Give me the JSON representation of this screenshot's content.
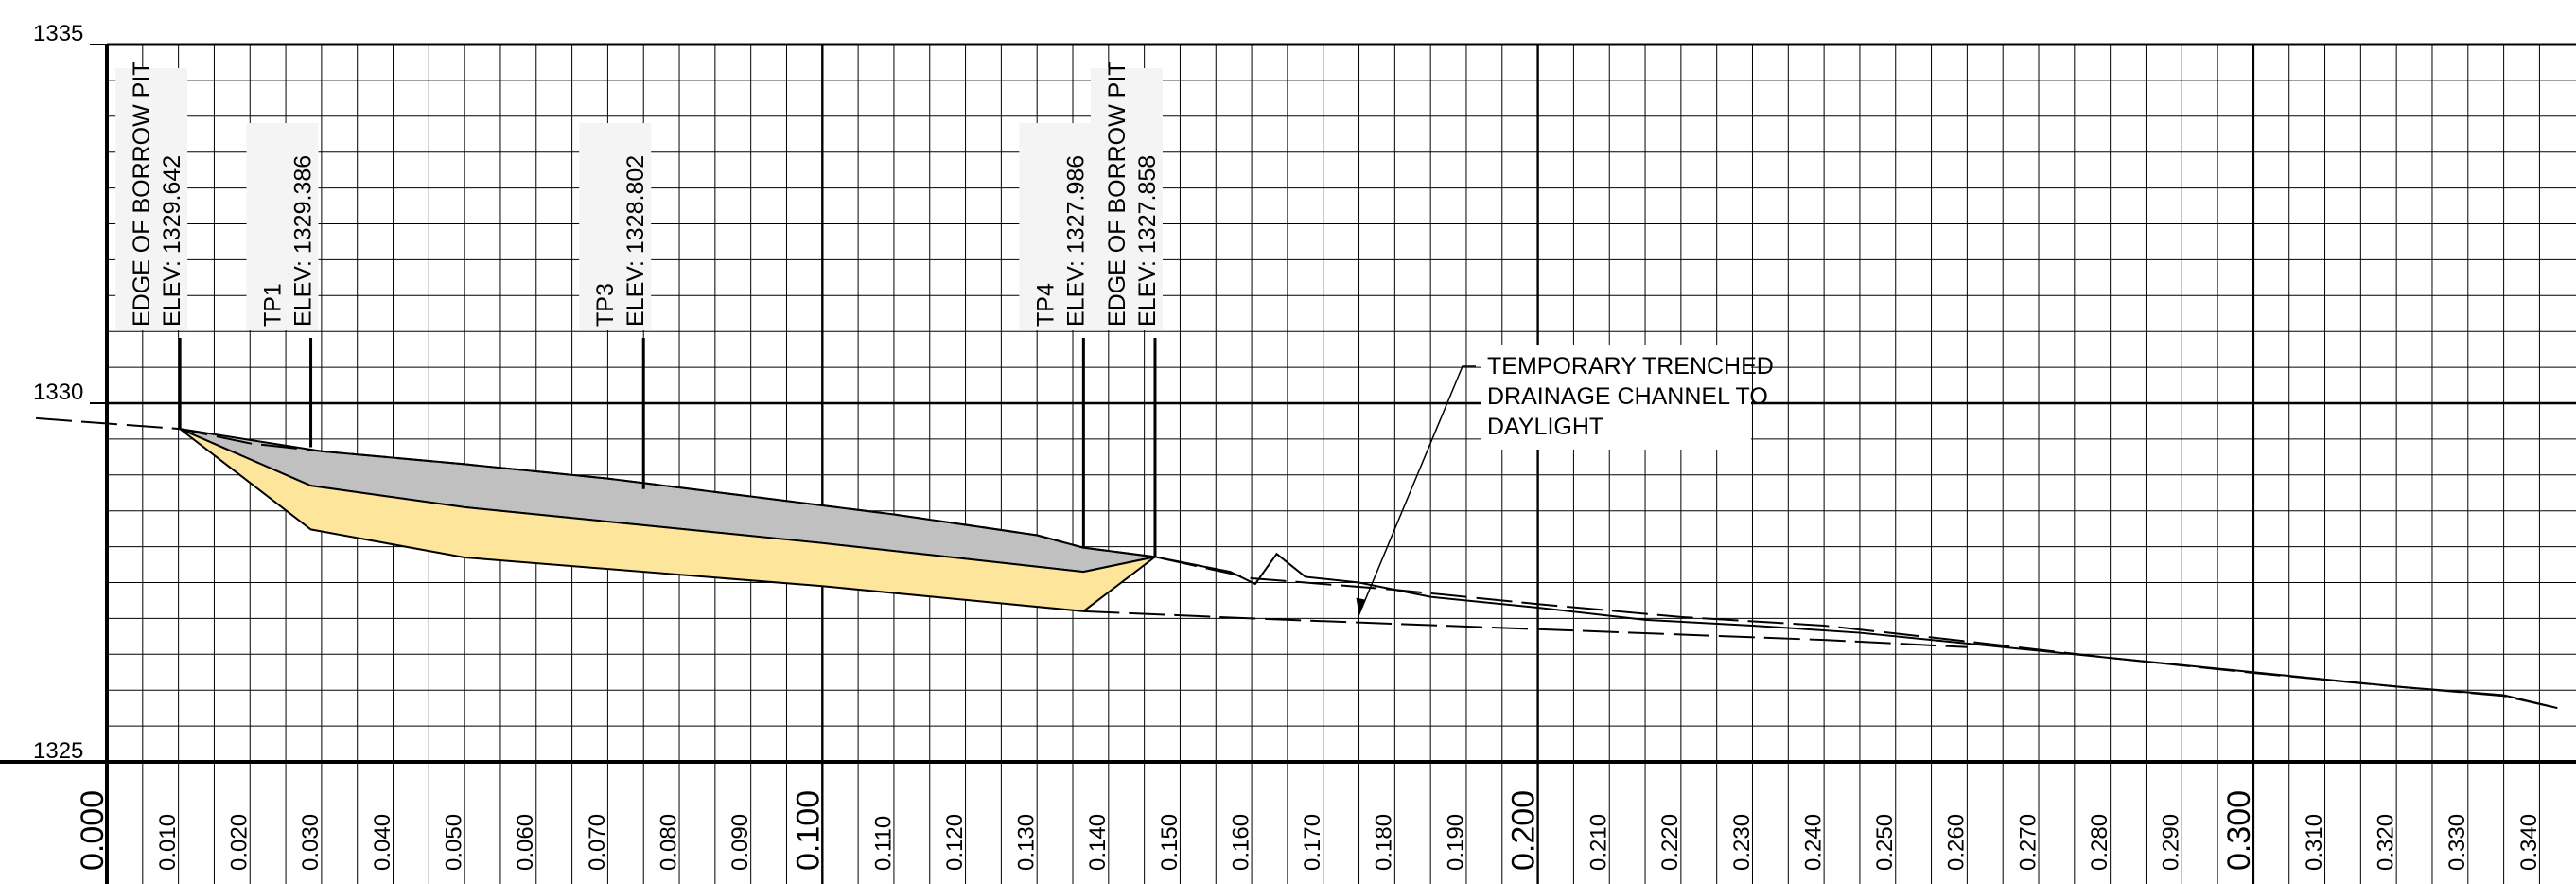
{
  "chart_data": {
    "type": "line",
    "title": "",
    "xlabel": "",
    "ylabel": "",
    "xlim": [
      0.0,
      0.3425
    ],
    "ylim": [
      1325,
      1335
    ],
    "grid": true,
    "y_ticks": [
      "1325",
      "1330",
      "1335"
    ],
    "x_ticks": [
      "0.000",
      "0.010",
      "0.020",
      "0.030",
      "0.040",
      "0.050",
      "0.060",
      "0.070",
      "0.080",
      "0.090",
      "0.100",
      "0.110",
      "0.120",
      "0.130",
      "0.140",
      "0.150",
      "0.160",
      "0.170",
      "0.180",
      "0.190",
      "0.200",
      "0.210",
      "0.220",
      "0.230",
      "0.240",
      "0.250",
      "0.260",
      "0.270",
      "0.280",
      "0.290",
      "0.300",
      "0.310",
      "0.320",
      "0.330",
      "0.340"
    ],
    "x_tick_values": [
      0.0,
      0.01,
      0.02,
      0.03,
      0.04,
      0.05,
      0.06,
      0.07,
      0.08,
      0.09,
      0.1,
      0.11,
      0.12,
      0.13,
      0.14,
      0.15,
      0.16,
      0.17,
      0.18,
      0.19,
      0.2,
      0.21,
      0.22,
      0.23,
      0.24,
      0.25,
      0.26,
      0.27,
      0.28,
      0.29,
      0.3,
      0.31,
      0.32,
      0.33,
      0.34
    ],
    "series": [
      {
        "style": "dashed",
        "points": [
          [
            -0.0099,
            1329.79
          ],
          [
            0.0102,
            1329.642
          ],
          [
            0.02,
            1329.44
          ],
          [
            0.03,
            1329.33
          ],
          [
            0.05,
            1329.15
          ],
          [
            0.07,
            1328.95
          ],
          [
            0.09,
            1328.7
          ],
          [
            0.11,
            1328.45
          ],
          [
            0.13,
            1328.16
          ],
          [
            0.1365,
            1327.986
          ],
          [
            0.1465,
            1327.858
          ],
          [
            0.16,
            1327.56
          ],
          [
            0.18,
            1327.4
          ],
          [
            0.2,
            1327.2
          ],
          [
            0.22,
            1327.02
          ],
          [
            0.24,
            1326.9
          ],
          [
            0.26,
            1326.68
          ],
          [
            0.28,
            1326.45
          ],
          [
            0.3,
            1326.24
          ],
          [
            0.32,
            1326.05
          ],
          [
            0.335,
            1325.92
          ],
          [
            0.3425,
            1325.75
          ]
        ]
      },
      {
        "style": "solid",
        "points": [
          [
            0.1465,
            1327.858
          ],
          [
            0.157,
            1327.65
          ],
          [
            0.1605,
            1327.48
          ],
          [
            0.1635,
            1327.9
          ],
          [
            0.1675,
            1327.58
          ],
          [
            0.175,
            1327.5
          ],
          [
            0.185,
            1327.3
          ],
          [
            0.2,
            1327.15
          ],
          [
            0.215,
            1326.98
          ],
          [
            0.23,
            1326.9
          ],
          [
            0.245,
            1326.8
          ],
          [
            0.26,
            1326.65
          ],
          [
            0.28,
            1326.45
          ],
          [
            0.3,
            1326.25
          ],
          [
            0.32,
            1326.05
          ],
          [
            0.335,
            1325.93
          ],
          [
            0.3425,
            1325.75
          ]
        ]
      },
      {
        "style": "dashed",
        "points": [
          [
            0.1365,
            1327.1
          ],
          [
            0.16,
            1327.0
          ],
          [
            0.2,
            1326.85
          ],
          [
            0.24,
            1326.7
          ],
          [
            0.26,
            1326.6
          ]
        ]
      }
    ],
    "regions": [
      {
        "fill": "#c0c0c0",
        "points": [
          [
            0.0102,
            1329.642
          ],
          [
            0.03,
            1329.33
          ],
          [
            0.05,
            1329.15
          ],
          [
            0.07,
            1328.95
          ],
          [
            0.09,
            1328.7
          ],
          [
            0.11,
            1328.45
          ],
          [
            0.13,
            1328.16
          ],
          [
            0.1365,
            1327.986
          ],
          [
            0.1465,
            1327.858
          ],
          [
            0.1365,
            1327.65
          ],
          [
            0.1,
            1328.05
          ],
          [
            0.05,
            1328.55
          ],
          [
            0.0285,
            1328.85
          ]
        ]
      },
      {
        "fill": "#fde59c",
        "points": [
          [
            0.0102,
            1329.642
          ],
          [
            0.0285,
            1328.85
          ],
          [
            0.05,
            1328.55
          ],
          [
            0.1,
            1328.05
          ],
          [
            0.1365,
            1327.65
          ],
          [
            0.1465,
            1327.858
          ],
          [
            0.1365,
            1327.1
          ],
          [
            0.1,
            1327.45
          ],
          [
            0.05,
            1327.85
          ],
          [
            0.0285,
            1328.24
          ]
        ]
      }
    ],
    "annotations": [
      {
        "x": 0.0102,
        "elev": 1329.642,
        "lines": [
          "EDGE OF BORROW PIT",
          "ELEV: 1329.642"
        ]
      },
      {
        "x": 0.0285,
        "elev": 1329.386,
        "lines": [
          "TP1",
          "ELEV: 1329.386"
        ]
      },
      {
        "x": 0.075,
        "elev": 1328.802,
        "lines": [
          "TP3",
          "ELEV: 1328.802"
        ]
      },
      {
        "x": 0.1365,
        "elev": 1327.986,
        "lines": [
          "TP4",
          "ELEV: 1327.986"
        ]
      },
      {
        "x": 0.1465,
        "elev": 1327.858,
        "lines": [
          "EDGE OF BORROW PIT",
          "ELEV: 1327.858"
        ]
      }
    ],
    "callout": {
      "lines": [
        "TEMPORARY TRENCHED",
        "DRAINAGE CHANNEL TO",
        "DAYLIGHT"
      ],
      "target": [
        0.175,
        1327.05
      ]
    }
  },
  "colors": {
    "grid": "#000000",
    "existing_ground_fill": "#c0c0c0",
    "excavation_fill": "#fde59c",
    "label_background": "#f4f4f4"
  }
}
